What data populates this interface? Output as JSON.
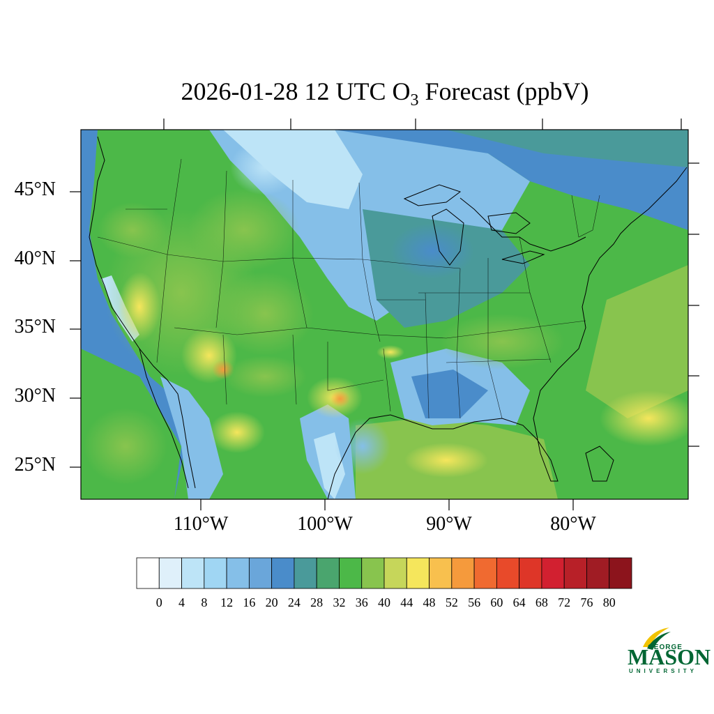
{
  "title": {
    "prefix": "2026-01-28 12 UTC O",
    "subscript": "3",
    "suffix": " Forecast (ppbV)"
  },
  "map": {
    "lat_labels": [
      "45°N",
      "40°N",
      "35°N",
      "30°N",
      "25°N"
    ],
    "lon_labels": [
      "110°W",
      "100°W",
      "90°W",
      "80°W"
    ]
  },
  "colorbar": {
    "labels": [
      "0",
      "4",
      "8",
      "12",
      "16",
      "20",
      "24",
      "28",
      "32",
      "36",
      "40",
      "44",
      "48",
      "52",
      "56",
      "60",
      "64",
      "68",
      "72",
      "76",
      "80"
    ],
    "colors": [
      "#ffffff",
      "#dff0fa",
      "#bde4f7",
      "#a0d6f3",
      "#85bfe8",
      "#6aa6da",
      "#4a8cca",
      "#4a9a9a",
      "#4aa56e",
      "#4cb848",
      "#88c44e",
      "#c6d65a",
      "#f5e65c",
      "#f8c04e",
      "#f59a3c",
      "#f06a30",
      "#e84a2a",
      "#de3628",
      "#d22030",
      "#b82028",
      "#a01c24",
      "#8c141c"
    ]
  },
  "logo": {
    "george": "GEORGE",
    "mason": "MASON",
    "university": "UNIVERSITY",
    "color": "#006633",
    "accent": "#f2c300"
  }
}
